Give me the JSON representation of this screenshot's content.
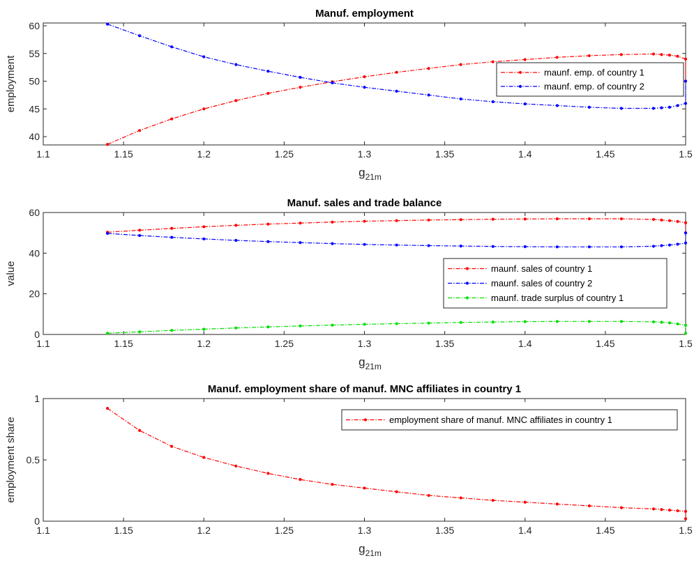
{
  "chart_data": [
    {
      "type": "line",
      "title": "Manuf. employment",
      "xlabel": "g",
      "xlabel_sub": "21m",
      "ylabel": "employment",
      "xlim": [
        1.1,
        1.5
      ],
      "ylim": [
        38.5,
        60.5
      ],
      "xticks": [
        "1.1",
        "1.15",
        "1.2",
        "1.25",
        "1.3",
        "1.35",
        "1.4",
        "1.45",
        "1.5"
      ],
      "yticks": [
        "40",
        "45",
        "50",
        "55",
        "60"
      ],
      "ytick_values": [
        40,
        45,
        50,
        55,
        60
      ],
      "legend_position": "right",
      "grid": false,
      "x": [
        1.14,
        1.16,
        1.18,
        1.2,
        1.22,
        1.24,
        1.26,
        1.28,
        1.3,
        1.32,
        1.34,
        1.36,
        1.38,
        1.4,
        1.42,
        1.44,
        1.46,
        1.48,
        1.485,
        1.49,
        1.495,
        1.5,
        1.5
      ],
      "series": [
        {
          "name": "maunf. emp. of country 1",
          "color": "#ff0000",
          "values": [
            38.6,
            41.1,
            43.2,
            45.0,
            46.5,
            47.8,
            48.9,
            49.9,
            50.8,
            51.6,
            52.3,
            53.0,
            53.5,
            53.9,
            54.3,
            54.6,
            54.8,
            54.9,
            54.8,
            54.7,
            54.5,
            54.0,
            50.0
          ]
        },
        {
          "name": "maunf. emp. of country 2",
          "color": "#0000ff",
          "values": [
            60.3,
            58.2,
            56.2,
            54.4,
            53.0,
            51.8,
            50.7,
            49.7,
            48.9,
            48.2,
            47.5,
            46.8,
            46.3,
            45.9,
            45.6,
            45.3,
            45.1,
            45.1,
            45.2,
            45.3,
            45.6,
            46.0,
            50.0
          ]
        }
      ]
    },
    {
      "type": "line",
      "title": "Manuf. sales and trade balance",
      "xlabel": "g",
      "xlabel_sub": "21m",
      "ylabel": "value",
      "xlim": [
        1.1,
        1.5
      ],
      "ylim": [
        0,
        60
      ],
      "xticks": [
        "1.1",
        "1.15",
        "1.2",
        "1.25",
        "1.3",
        "1.35",
        "1.4",
        "1.45",
        "1.5"
      ],
      "yticks": [
        "0",
        "20",
        "40",
        "60"
      ],
      "ytick_values": [
        0,
        20,
        40,
        60
      ],
      "legend_position": "right",
      "grid": false,
      "x": [
        1.14,
        1.16,
        1.18,
        1.2,
        1.22,
        1.24,
        1.26,
        1.28,
        1.3,
        1.32,
        1.34,
        1.36,
        1.38,
        1.4,
        1.42,
        1.44,
        1.46,
        1.48,
        1.485,
        1.49,
        1.495,
        1.5,
        1.5
      ],
      "series": [
        {
          "name": "maunf. sales of country 1",
          "color": "#ff0000",
          "values": [
            50.3,
            51.3,
            52.2,
            53.0,
            53.7,
            54.3,
            54.8,
            55.3,
            55.7,
            56.0,
            56.3,
            56.5,
            56.7,
            56.8,
            56.9,
            56.9,
            56.9,
            56.6,
            56.3,
            56.0,
            55.6,
            55.0,
            50.0
          ]
        },
        {
          "name": "maunf. sales of country 2",
          "color": "#0000ff",
          "values": [
            49.7,
            48.7,
            47.8,
            47.0,
            46.3,
            45.7,
            45.2,
            44.7,
            44.3,
            44.0,
            43.7,
            43.5,
            43.3,
            43.2,
            43.1,
            43.1,
            43.1,
            43.4,
            43.7,
            44.0,
            44.4,
            45.0,
            50.0
          ]
        },
        {
          "name": "maunf. trade surplus of country 1",
          "color": "#00dd00",
          "values": [
            0.6,
            1.3,
            2.0,
            2.6,
            3.2,
            3.7,
            4.2,
            4.6,
            5.0,
            5.3,
            5.6,
            5.9,
            6.1,
            6.3,
            6.4,
            6.4,
            6.4,
            6.2,
            6.0,
            5.7,
            5.2,
            4.5,
            0.5
          ]
        }
      ]
    },
    {
      "type": "line",
      "title": "Manuf. employment share of manuf. MNC affiliates in country 1",
      "xlabel": "g",
      "xlabel_sub": "21m",
      "ylabel": "employment share",
      "xlim": [
        1.1,
        1.5
      ],
      "ylim": [
        0,
        1
      ],
      "xticks": [
        "1.1",
        "1.15",
        "1.2",
        "1.25",
        "1.3",
        "1.35",
        "1.4",
        "1.45",
        "1.5"
      ],
      "yticks": [
        "0",
        "0.5",
        "1"
      ],
      "ytick_values": [
        0,
        0.5,
        1
      ],
      "legend_position": "top-right",
      "grid": false,
      "x": [
        1.14,
        1.16,
        1.18,
        1.2,
        1.22,
        1.24,
        1.26,
        1.28,
        1.3,
        1.32,
        1.34,
        1.36,
        1.38,
        1.4,
        1.42,
        1.44,
        1.46,
        1.48,
        1.485,
        1.49,
        1.495,
        1.5,
        1.5
      ],
      "series": [
        {
          "name": "employment share of manuf. MNC affiliates in country 1",
          "color": "#ff0000",
          "values": [
            0.92,
            0.74,
            0.61,
            0.52,
            0.45,
            0.39,
            0.34,
            0.3,
            0.27,
            0.24,
            0.21,
            0.19,
            0.17,
            0.155,
            0.14,
            0.125,
            0.11,
            0.1,
            0.095,
            0.09,
            0.085,
            0.08,
            0.02
          ]
        }
      ]
    }
  ]
}
